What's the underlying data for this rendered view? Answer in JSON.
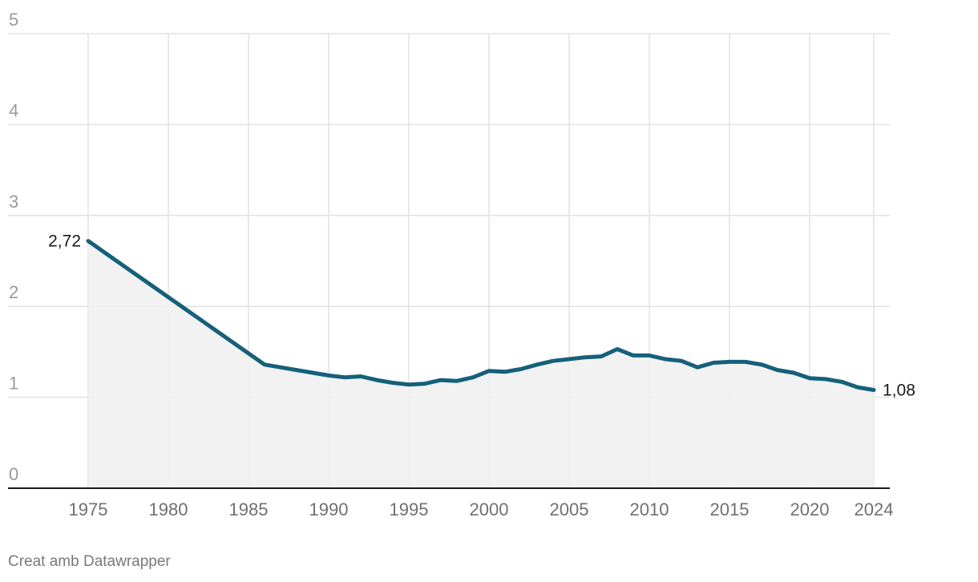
{
  "chart_data": {
    "type": "area",
    "x": [
      1975,
      1986,
      1987,
      1988,
      1989,
      1990,
      1991,
      1992,
      1993,
      1994,
      1995,
      1996,
      1997,
      1998,
      1999,
      2000,
      2001,
      2002,
      2003,
      2004,
      2005,
      2006,
      2007,
      2008,
      2009,
      2010,
      2011,
      2012,
      2013,
      2014,
      2015,
      2016,
      2017,
      2018,
      2019,
      2020,
      2021,
      2022,
      2023,
      2024
    ],
    "y": [
      2.72,
      1.36,
      1.33,
      1.3,
      1.27,
      1.24,
      1.22,
      1.23,
      1.19,
      1.16,
      1.14,
      1.15,
      1.19,
      1.18,
      1.22,
      1.29,
      1.28,
      1.31,
      1.36,
      1.4,
      1.42,
      1.44,
      1.45,
      1.53,
      1.46,
      1.46,
      1.42,
      1.4,
      1.33,
      1.38,
      1.39,
      1.39,
      1.36,
      1.3,
      1.27,
      1.21,
      1.2,
      1.17,
      1.11,
      1.08
    ],
    "yticks": [
      0,
      1,
      2,
      3,
      4,
      5
    ],
    "xticks": [
      1975,
      1980,
      1985,
      1990,
      1995,
      2000,
      2005,
      2010,
      2015,
      2020,
      2024
    ],
    "ylim": [
      0,
      5
    ],
    "xlim": [
      1975,
      2024
    ],
    "grid": true,
    "line_color": "#15607a",
    "fill_color": "#f1f1f1",
    "data_labels": [
      {
        "x": 1975,
        "text": "2,72"
      },
      {
        "x": 2024,
        "text": "1,08"
      }
    ]
  },
  "credit": "Creat amb Datawrapper"
}
